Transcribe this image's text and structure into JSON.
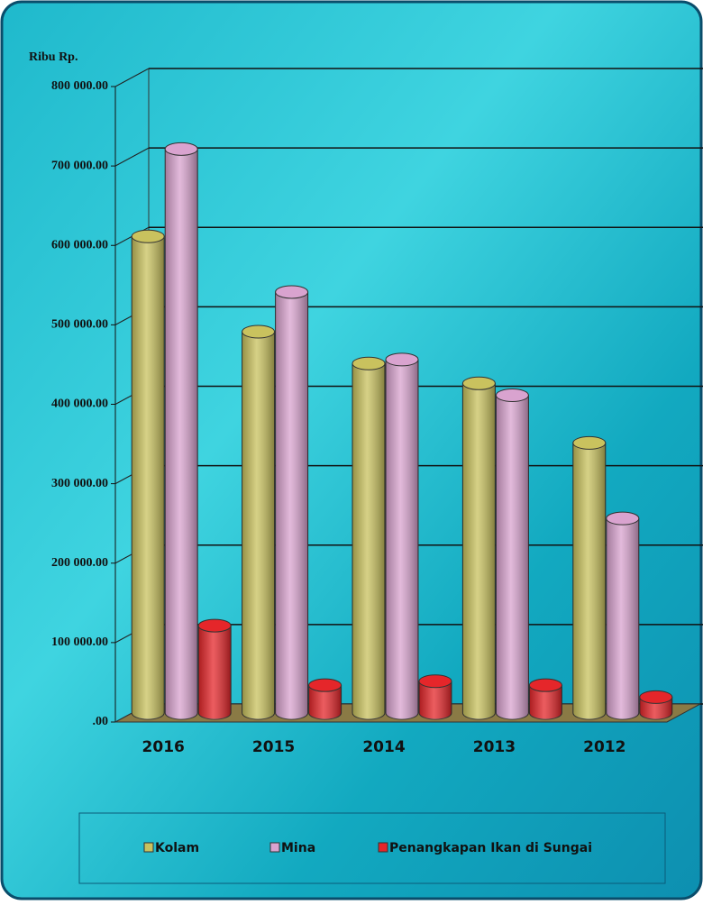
{
  "chart_data": {
    "type": "bar3d",
    "y_label": "Ribu Rp.",
    "categories": [
      "2016",
      "2015",
      "2014",
      "2013",
      "2012"
    ],
    "series": [
      {
        "name": "Kolam",
        "color": "#c9c25e",
        "values": [
          600000,
          480000,
          440000,
          415000,
          340000
        ]
      },
      {
        "name": "Mina",
        "color": "#d9a3cf",
        "values": [
          710000,
          530000,
          445000,
          400000,
          245000
        ]
      },
      {
        "name": "Penangkapan Ikan di Sungai",
        "color": "#e5262a",
        "values": [
          110000,
          35000,
          40000,
          35000,
          20000
        ]
      }
    ],
    "ylim": [
      0,
      800000
    ],
    "yticks": [
      {
        "value": 0,
        "label": ".00"
      },
      {
        "value": 100000,
        "label": "100 000.00"
      },
      {
        "value": 200000,
        "label": "200 000.00"
      },
      {
        "value": 300000,
        "label": "300 000.00"
      },
      {
        "value": 400000,
        "label": "400 000.00"
      },
      {
        "value": 500000,
        "label": "500 000.00"
      },
      {
        "value": 600000,
        "label": "600 000.00"
      },
      {
        "value": 700000,
        "label": "700 000.00"
      },
      {
        "value": 800000,
        "label": "800 000.00"
      }
    ],
    "grid": true
  }
}
